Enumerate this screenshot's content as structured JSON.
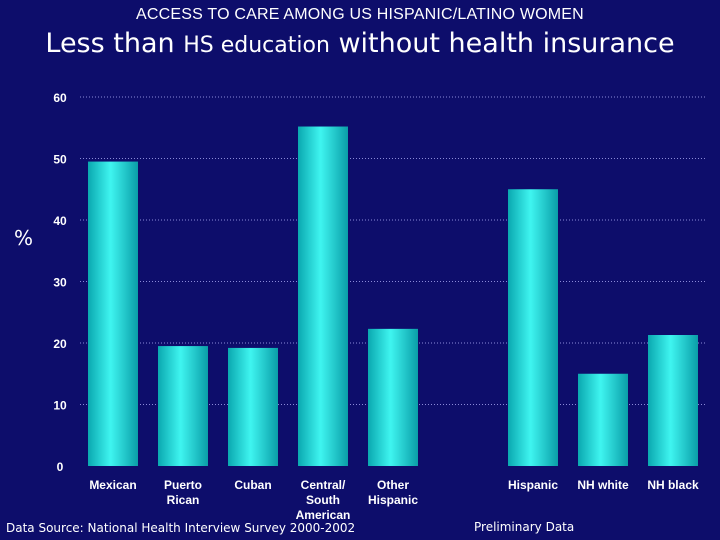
{
  "header": {
    "supertitle": "ACCESS TO CARE AMONG US HISPANIC/LATINO WOMEN",
    "title_part1": "Less than ",
    "title_part2": "HS education",
    "title_part3": " without health insurance"
  },
  "footer": {
    "source": "Data Source:  National Health Interview Survey 2000-2002",
    "note": "Preliminary Data"
  },
  "colors": {
    "background": "#0d0d6b",
    "bar_light": "#3ff5f0",
    "bar_dark": "#0aa8b0",
    "gridline": "#8a8ad8"
  },
  "chart_data": {
    "type": "bar",
    "title": "Less than HS education without health insurance",
    "ylabel": "%",
    "xlabel": "",
    "ylim": [
      0,
      60
    ],
    "yticks": [
      0,
      10,
      20,
      30,
      40,
      50,
      60
    ],
    "grid": true,
    "categories": [
      [
        "Mexican"
      ],
      [
        "Puerto",
        "Rican"
      ],
      [
        "Cuban"
      ],
      [
        "Central/",
        "South",
        "American"
      ],
      [
        "Other",
        "Hispanic"
      ],
      [
        "Hispanic"
      ],
      [
        "NH white"
      ],
      [
        "NH black"
      ]
    ],
    "values": [
      49.5,
      19.5,
      19.2,
      55.2,
      22.3,
      45.0,
      15.0,
      21.3
    ]
  }
}
